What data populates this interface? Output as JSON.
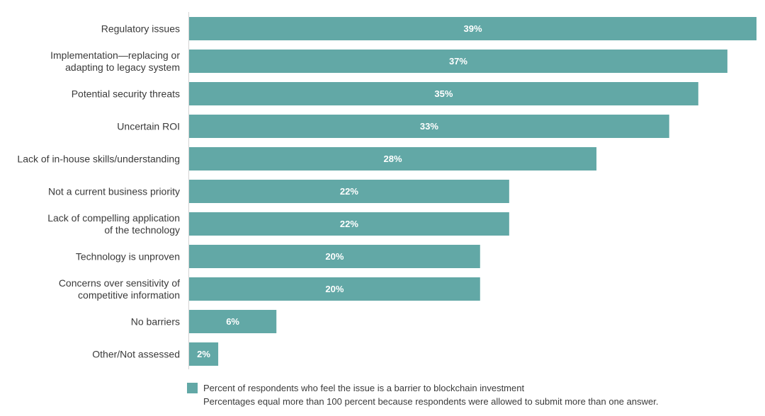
{
  "chart_data": {
    "type": "bar",
    "orientation": "horizontal",
    "title": "",
    "xlabel": "",
    "ylabel": "",
    "xlim": [
      0,
      39
    ],
    "grid": false,
    "bar_color": "#62a8a6",
    "categories": [
      "Regulatory issues",
      "Implementation—replacing or\nadapting to legacy system",
      "Potential security threats",
      "Uncertain ROI",
      "Lack of in-house skills/understanding",
      "Not a current business priority",
      "Lack of compelling application\nof the technology",
      "Technology is unproven",
      "Concerns over sensitivity of\ncompetitive information",
      "No barriers",
      "Other/Not assessed"
    ],
    "values": [
      39,
      37,
      35,
      33,
      28,
      22,
      22,
      20,
      20,
      6,
      2
    ],
    "value_labels": [
      "39%",
      "37%",
      "35%",
      "33%",
      "28%",
      "22%",
      "22%",
      "20%",
      "20%",
      "6%",
      "2%"
    ],
    "legend": {
      "series_name": "Percent of respondents who feel the issue is a barrier to blockchain investment",
      "note": "Percentages equal more than 100 percent because respondents were allowed to submit more than one answer.",
      "placement": "bottom"
    }
  }
}
